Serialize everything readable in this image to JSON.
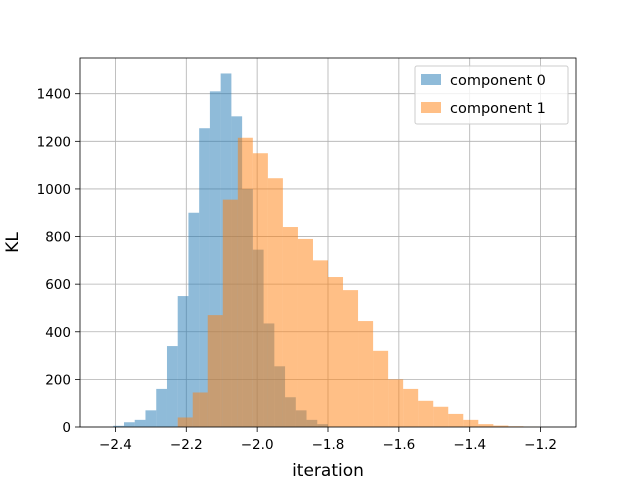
{
  "chart_data": {
    "type": "histogram",
    "xlabel": "iteration",
    "ylabel": "KL",
    "xlim": [
      -2.5,
      -1.1
    ],
    "ylim": [
      0,
      1550
    ],
    "x_ticks": [
      -2.4,
      -2.2,
      -2.0,
      -1.8,
      -1.6,
      -1.4,
      -1.2
    ],
    "x_tick_labels": [
      "−2.4",
      "−2.2",
      "−2.0",
      "−1.8",
      "−1.6",
      "−1.4",
      "−1.2"
    ],
    "y_ticks": [
      0,
      200,
      400,
      600,
      800,
      1000,
      1200,
      1400
    ],
    "y_tick_labels": [
      "0",
      "200",
      "400",
      "600",
      "800",
      "1000",
      "1200",
      "1400"
    ],
    "grid": true,
    "legend_position": "top-right",
    "series": [
      {
        "name": "component 0",
        "color": "#1f77b4",
        "alpha": 0.5,
        "bins": [
          {
            "x0": -2.4061,
            "x1": -2.3758,
            "y": 5
          },
          {
            "x0": -2.3758,
            "x1": -2.3455,
            "y": 20
          },
          {
            "x0": -2.3455,
            "x1": -2.3152,
            "y": 30
          },
          {
            "x0": -2.3152,
            "x1": -2.2848,
            "y": 70
          },
          {
            "x0": -2.2848,
            "x1": -2.2545,
            "y": 160
          },
          {
            "x0": -2.2545,
            "x1": -2.2242,
            "y": 340
          },
          {
            "x0": -2.2242,
            "x1": -2.1939,
            "y": 550
          },
          {
            "x0": -2.1939,
            "x1": -2.1636,
            "y": 900
          },
          {
            "x0": -2.1636,
            "x1": -2.1333,
            "y": 1255
          },
          {
            "x0": -2.1333,
            "x1": -2.103,
            "y": 1410
          },
          {
            "x0": -2.103,
            "x1": -2.0727,
            "y": 1485
          },
          {
            "x0": -2.0727,
            "x1": -2.0424,
            "y": 1305
          },
          {
            "x0": -2.0424,
            "x1": -2.0121,
            "y": 1000
          },
          {
            "x0": -2.0121,
            "x1": -1.9818,
            "y": 745
          },
          {
            "x0": -1.9818,
            "x1": -1.9515,
            "y": 435
          },
          {
            "x0": -1.9515,
            "x1": -1.9212,
            "y": 255
          },
          {
            "x0": -1.9212,
            "x1": -1.8909,
            "y": 125
          },
          {
            "x0": -1.8909,
            "x1": -1.8606,
            "y": 70
          },
          {
            "x0": -1.8606,
            "x1": -1.8303,
            "y": 30
          },
          {
            "x0": -1.8303,
            "x1": -1.8,
            "y": 12
          }
        ]
      },
      {
        "name": "component 1",
        "color": "#ff7f0e",
        "alpha": 0.5,
        "bins": [
          {
            "x0": -2.2242,
            "x1": -2.1818,
            "y": 40
          },
          {
            "x0": -2.1818,
            "x1": -2.1394,
            "y": 145
          },
          {
            "x0": -2.1394,
            "x1": -2.097,
            "y": 470
          },
          {
            "x0": -2.097,
            "x1": -2.0545,
            "y": 955
          },
          {
            "x0": -2.0545,
            "x1": -2.0121,
            "y": 1215
          },
          {
            "x0": -2.0121,
            "x1": -1.9697,
            "y": 1150
          },
          {
            "x0": -1.9697,
            "x1": -1.9273,
            "y": 1045
          },
          {
            "x0": -1.9273,
            "x1": -1.8848,
            "y": 840
          },
          {
            "x0": -1.8848,
            "x1": -1.8424,
            "y": 790
          },
          {
            "x0": -1.8424,
            "x1": -1.8,
            "y": 700
          },
          {
            "x0": -1.8,
            "x1": -1.7576,
            "y": 630
          },
          {
            "x0": -1.7576,
            "x1": -1.7152,
            "y": 575
          },
          {
            "x0": -1.7152,
            "x1": -1.6727,
            "y": 445
          },
          {
            "x0": -1.6727,
            "x1": -1.6303,
            "y": 320
          },
          {
            "x0": -1.6303,
            "x1": -1.5879,
            "y": 200
          },
          {
            "x0": -1.5879,
            "x1": -1.5455,
            "y": 160
          },
          {
            "x0": -1.5455,
            "x1": -1.503,
            "y": 110
          },
          {
            "x0": -1.503,
            "x1": -1.4606,
            "y": 85
          },
          {
            "x0": -1.4606,
            "x1": -1.4182,
            "y": 55
          },
          {
            "x0": -1.4182,
            "x1": -1.3758,
            "y": 30
          },
          {
            "x0": -1.3758,
            "x1": -1.3333,
            "y": 12
          },
          {
            "x0": -1.3333,
            "x1": -1.2909,
            "y": 6
          },
          {
            "x0": -1.2909,
            "x1": -1.2485,
            "y": 3
          },
          {
            "x0": -1.2485,
            "x1": -1.2061,
            "y": 1
          }
        ]
      }
    ]
  }
}
